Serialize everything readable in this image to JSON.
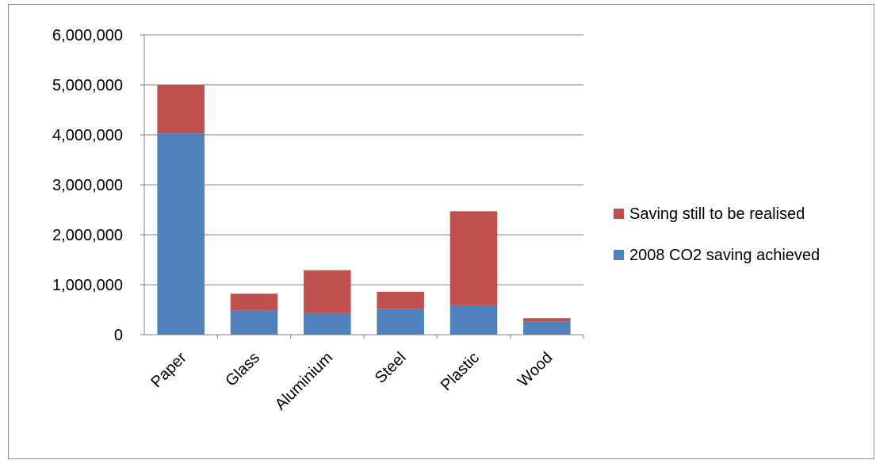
{
  "chart_data": {
    "type": "bar",
    "stacked": true,
    "categories": [
      "Paper",
      "Glass",
      "Aluminium",
      "Steel",
      "Plastic",
      "Wood"
    ],
    "series": [
      {
        "name": "2008 CO2 saving achieved",
        "color": "#4f81bd",
        "values": [
          4030000,
          480000,
          430000,
          520000,
          590000,
          260000
        ]
      },
      {
        "name": "Saving still to be realised",
        "color": "#c0504d",
        "values": [
          970000,
          340000,
          860000,
          340000,
          1880000,
          70000
        ]
      }
    ],
    "y_tick_labels": [
      "0",
      "1,000,000",
      "2,000,000",
      "3,000,000",
      "4,000,000",
      "5,000,000",
      "6,000,000"
    ],
    "ylim": [
      0,
      6000000
    ],
    "grid": true,
    "legend_position": "right",
    "legend_order": [
      "Saving still to be realised",
      "2008 CO2 saving achieved"
    ],
    "title": "",
    "xlabel": "",
    "ylabel": ""
  }
}
